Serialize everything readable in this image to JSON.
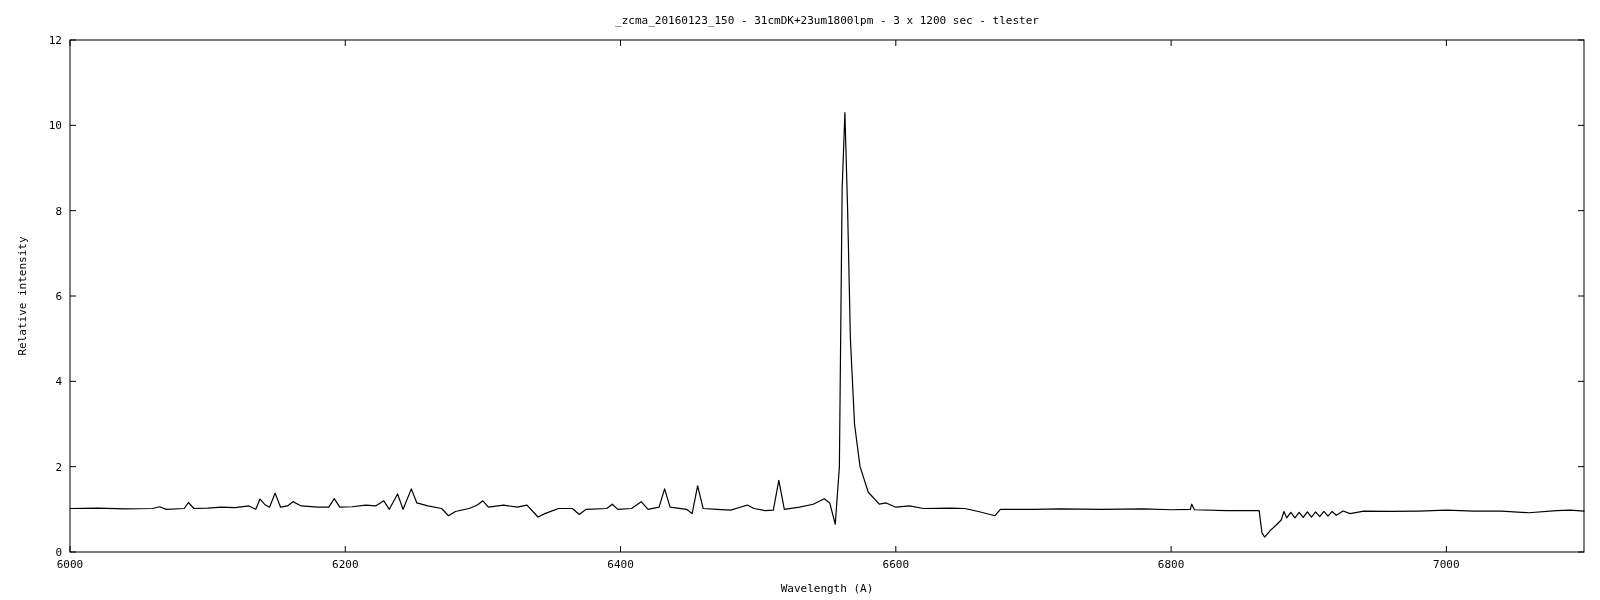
{
  "chart_data": {
    "type": "line",
    "title": "_zcma_20160123_150 - 31cmDK+23um1800lpm - 3 x 1200 sec - tlester",
    "xlabel": "Wavelength (A)",
    "ylabel": "Relative intensity",
    "xlim": [
      6000,
      7100
    ],
    "ylim": [
      0,
      12
    ],
    "xticks": [
      6000,
      6200,
      6400,
      6600,
      6800,
      7000
    ],
    "yticks": [
      0,
      2,
      4,
      6,
      8,
      10,
      12
    ],
    "grid": false,
    "marker": "none",
    "line_style": "solid",
    "series": [
      {
        "color": "#000000",
        "x": [
          6000,
          6020,
          6040,
          6060,
          6065,
          6070,
          6083,
          6086,
          6090,
          6100,
          6110,
          6120,
          6130,
          6135,
          6138,
          6142,
          6145,
          6149,
          6153,
          6158,
          6162,
          6168,
          6180,
          6188,
          6192,
          6196,
          6205,
          6215,
          6222,
          6228,
          6232,
          6238,
          6242,
          6248,
          6252,
          6260,
          6270,
          6275,
          6280,
          6290,
          6296,
          6300,
          6304,
          6315,
          6325,
          6332,
          6340,
          6345,
          6355,
          6365,
          6370,
          6375,
          6390,
          6394,
          6398,
          6408,
          6415,
          6420,
          6428,
          6432,
          6436,
          6448,
          6452,
          6456,
          6460,
          6470,
          6480,
          6487,
          6492,
          6497,
          6505,
          6511,
          6515,
          6519,
          6530,
          6540,
          6548,
          6552,
          6556,
          6559,
          6561,
          6563,
          6565,
          6567,
          6570,
          6574,
          6580,
          6588,
          6593,
          6600,
          6610,
          6620,
          6640,
          6650,
          6660,
          6672,
          6676,
          6700,
          6720,
          6750,
          6780,
          6800,
          6814,
          6815,
          6817,
          6840,
          6864,
          6866,
          6868,
          6872,
          6876,
          6880,
          6882,
          6884,
          6887,
          6890,
          6893,
          6896,
          6899,
          6902,
          6905,
          6908,
          6911,
          6914,
          6917,
          6920,
          6925,
          6930,
          6940,
          6960,
          6980,
          7000,
          7020,
          7040,
          7060,
          7080,
          7090,
          7100
        ],
        "values": [
          1.02,
          1.03,
          1.01,
          1.02,
          1.06,
          1.0,
          1.02,
          1.16,
          1.02,
          1.03,
          1.05,
          1.04,
          1.08,
          1.0,
          1.24,
          1.1,
          1.05,
          1.38,
          1.05,
          1.08,
          1.18,
          1.08,
          1.05,
          1.05,
          1.25,
          1.05,
          1.06,
          1.1,
          1.08,
          1.2,
          1.0,
          1.36,
          1.0,
          1.48,
          1.15,
          1.08,
          1.02,
          0.85,
          0.95,
          1.02,
          1.1,
          1.2,
          1.05,
          1.1,
          1.05,
          1.1,
          0.82,
          0.9,
          1.02,
          1.02,
          0.88,
          1.0,
          1.02,
          1.12,
          1.0,
          1.02,
          1.18,
          1.0,
          1.05,
          1.48,
          1.05,
          1.0,
          0.9,
          1.55,
          1.02,
          1.0,
          0.98,
          1.05,
          1.1,
          1.02,
          0.97,
          0.98,
          1.68,
          1.0,
          1.05,
          1.12,
          1.25,
          1.15,
          0.65,
          2.0,
          8.5,
          10.3,
          8.0,
          5.0,
          3.0,
          2.0,
          1.4,
          1.12,
          1.15,
          1.05,
          1.08,
          1.02,
          1.03,
          1.02,
          0.95,
          0.85,
          1.0,
          1.0,
          1.01,
          1.0,
          1.01,
          0.99,
          1.0,
          1.12,
          0.99,
          0.97,
          0.97,
          0.45,
          0.35,
          0.5,
          0.62,
          0.75,
          0.95,
          0.8,
          0.93,
          0.8,
          0.93,
          0.81,
          0.94,
          0.82,
          0.94,
          0.83,
          0.95,
          0.84,
          0.95,
          0.86,
          0.96,
          0.9,
          0.96,
          0.95,
          0.96,
          0.98,
          0.96,
          0.96,
          0.92,
          0.97,
          0.98,
          0.96
        ]
      }
    ]
  }
}
